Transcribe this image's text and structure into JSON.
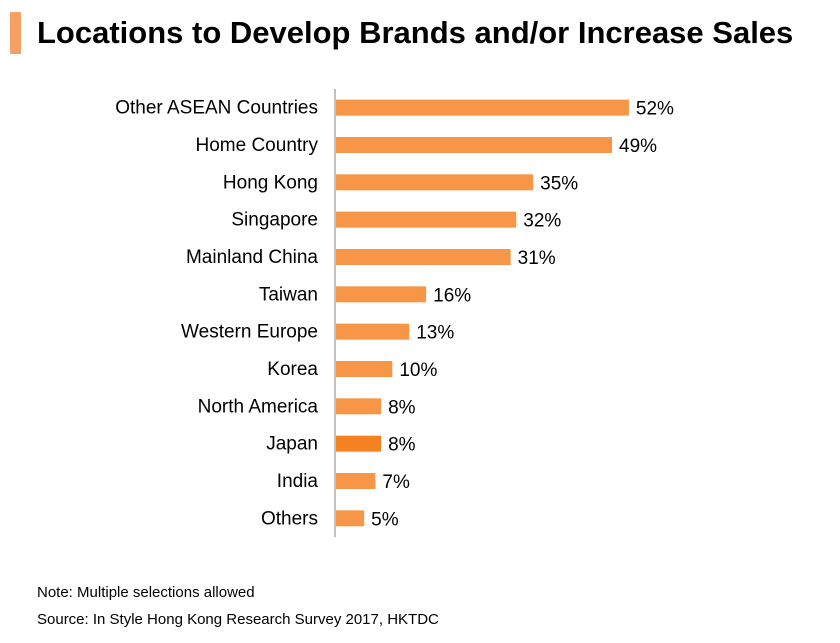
{
  "title": "Locations to Develop Brands and/or Increase Sales",
  "note": "Note: Multiple selections allowed",
  "source": "Source: In Style Hong Kong Research Survey 2017, HKTDC",
  "colors": {
    "bar": "#F79646",
    "bar_highlight": "#F58220",
    "title_accent": "#F7A064",
    "axis": "#808080"
  },
  "chart_data": {
    "type": "bar",
    "orientation": "horizontal",
    "title": "Locations to Develop Brands and/or Increase Sales",
    "xlabel": "",
    "ylabel": "",
    "value_suffix": "%",
    "categories": [
      "Other ASEAN Countries",
      "Home Country",
      "Hong Kong",
      "Singapore",
      "Mainland China",
      "Taiwan",
      "Western Europe",
      "Korea",
      "North America",
      "Japan",
      "India",
      "Others"
    ],
    "values": [
      52,
      49,
      35,
      32,
      31,
      16,
      13,
      10,
      8,
      8,
      7,
      5
    ],
    "highlight_index": 9,
    "xlim": [
      0,
      60
    ],
    "grid": false,
    "legend": "none"
  }
}
